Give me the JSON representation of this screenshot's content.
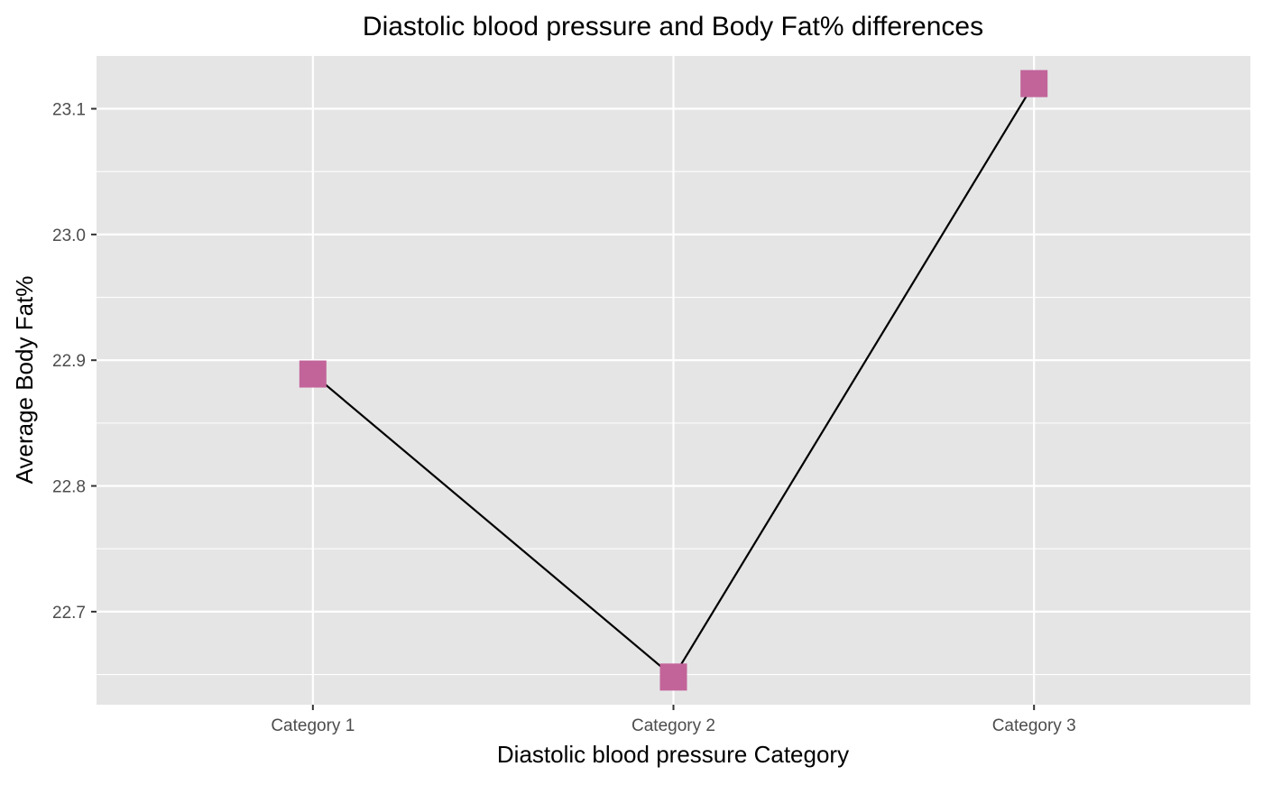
{
  "chart_data": {
    "type": "line",
    "title": "Diastolic blood pressure and Body Fat% differences",
    "xlabel": "Diastolic blood pressure Category",
    "ylabel": "Average Body Fat%",
    "categories": [
      "Category 1",
      "Category 2",
      "Category 3"
    ],
    "series": [
      {
        "values": [
          22.889,
          22.648,
          23.12
        ]
      }
    ],
    "ylim": [
      22.626,
      23.142
    ],
    "yticks": [
      22.7,
      22.8,
      22.9,
      23.0,
      23.1
    ],
    "ytick_labels": [
      "22.7",
      "22.8",
      "22.9",
      "23.0",
      "23.1"
    ],
    "grid": true,
    "marker": "square",
    "colors": {
      "panel_background": "#E5E5E5",
      "grid_major": "#FFFFFF",
      "line": "#000000",
      "marker": "#C2649A",
      "tick_text": "#4D4D4D",
      "tick_mark": "#333333"
    }
  }
}
